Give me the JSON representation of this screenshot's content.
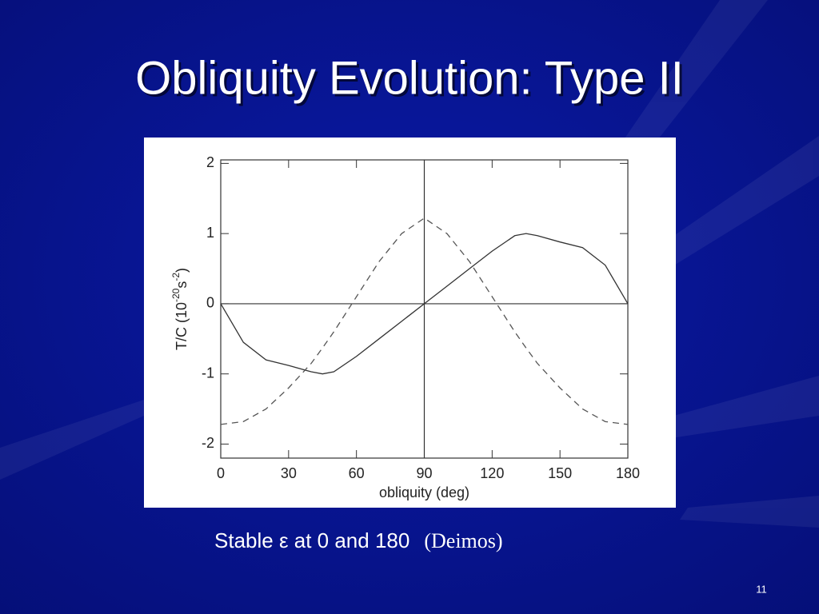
{
  "title": "Obliquity Evolution: Type II",
  "chart_data": {
    "type": "line",
    "x": [
      0,
      10,
      20,
      30,
      40,
      45,
      50,
      60,
      70,
      80,
      90,
      100,
      110,
      120,
      130,
      135,
      140,
      150,
      160,
      170,
      180
    ],
    "series": [
      {
        "color": "#333333",
        "dash": "solid",
        "values": [
          0,
          -0.55,
          -0.8,
          -0.88,
          -0.97,
          -1.0,
          -0.97,
          -0.75,
          -0.5,
          -0.25,
          0,
          0.25,
          0.5,
          0.75,
          0.97,
          1.0,
          0.97,
          0.88,
          0.8,
          0.55,
          0
        ]
      },
      {
        "color": "#555555",
        "dash": "dashed",
        "values": [
          -1.72,
          -1.68,
          -1.5,
          -1.2,
          -0.85,
          -0.63,
          -0.4,
          0.1,
          0.6,
          1.0,
          1.22,
          1.0,
          0.6,
          0.1,
          -0.4,
          -0.63,
          -0.85,
          -1.2,
          -1.5,
          -1.68,
          -1.72
        ]
      }
    ],
    "xlim": [
      0,
      180
    ],
    "xticks": [
      0,
      30,
      60,
      90,
      120,
      150,
      180
    ],
    "ylim": [
      -2.2,
      2.05
    ],
    "yticks": [
      2,
      1,
      0,
      -1,
      -2
    ],
    "xlabel": "obliquity (deg)",
    "ylabel_parts": [
      "T/C  (10",
      "-20",
      "s",
      "-2",
      ")"
    ],
    "reference_lines": {
      "x": 90,
      "y": 0
    }
  },
  "caption": "Stable ε at 0 and 180",
  "caption_source": "(Deimos)",
  "page_number": "11"
}
